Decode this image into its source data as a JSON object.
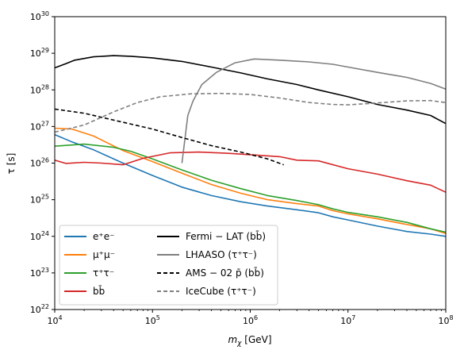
{
  "chart_data": {
    "type": "line",
    "xlabel": "m_χ [GeV]",
    "ylabel": "τ [s]",
    "x_scale": "log",
    "y_scale": "log",
    "xlim": [
      10000,
      100000000
    ],
    "ylim": [
      1e+22,
      1e+30
    ],
    "x_ticks": [
      {
        "value": 10000,
        "base": "10",
        "exp": "4"
      },
      {
        "value": 100000,
        "base": "10",
        "exp": "5"
      },
      {
        "value": 1000000,
        "base": "10",
        "exp": "6"
      },
      {
        "value": 10000000,
        "base": "10",
        "exp": "7"
      },
      {
        "value": 100000000,
        "base": "10",
        "exp": "8"
      }
    ],
    "y_ticks": [
      {
        "value": 1e+22,
        "base": "10",
        "exp": "22"
      },
      {
        "value": 1e+23,
        "base": "10",
        "exp": "23"
      },
      {
        "value": 1e+24,
        "base": "10",
        "exp": "24"
      },
      {
        "value": 1e+25,
        "base": "10",
        "exp": "25"
      },
      {
        "value": 1e+26,
        "base": "10",
        "exp": "26"
      },
      {
        "value": 1e+27,
        "base": "10",
        "exp": "27"
      },
      {
        "value": 1e+28,
        "base": "10",
        "exp": "28"
      },
      {
        "value": 1e+29,
        "base": "10",
        "exp": "29"
      },
      {
        "value": 1e+30,
        "base": "10",
        "exp": "30"
      }
    ],
    "grid": false,
    "legend_placement": "lower-left",
    "series": [
      {
        "name": "e⁺e⁻",
        "color": "#1f77b4",
        "style": "solid",
        "points": [
          [
            10000,
            6e+26
          ],
          [
            15000,
            3.8e+26
          ],
          [
            25000,
            2.3e+26
          ],
          [
            50000,
            1e+26
          ],
          [
            100000,
            4.6e+25
          ],
          [
            200000,
            2.2e+25
          ],
          [
            400000,
            1.3e+25
          ],
          [
            800000,
            8.8e+24
          ],
          [
            1500000,
            6.7e+24
          ],
          [
            3000000,
            5.3e+24
          ],
          [
            5000000,
            4.4e+24
          ],
          [
            7000000,
            3.4e+24
          ],
          [
            10000000,
            2.8e+24
          ],
          [
            20000000,
            1.9e+24
          ],
          [
            40000000,
            1.35e+24
          ],
          [
            70000000,
            1.15e+24
          ],
          [
            100000000,
            1e+24
          ]
        ]
      },
      {
        "name": "μ⁺μ⁻",
        "color": "#ff7f0e",
        "style": "solid",
        "points": [
          [
            10000,
            9e+26
          ],
          [
            15000,
            8.5e+26
          ],
          [
            25000,
            5.5e+26
          ],
          [
            50000,
            2.2e+26
          ],
          [
            100000,
            1.1e+26
          ],
          [
            200000,
            5.3e+25
          ],
          [
            400000,
            2.6e+25
          ],
          [
            800000,
            1.5e+25
          ],
          [
            1500000,
            1e+25
          ],
          [
            3000000,
            7.8e+24
          ],
          [
            5000000,
            6.7e+24
          ],
          [
            7000000,
            5e+24
          ],
          [
            10000000,
            4.1e+24
          ],
          [
            20000000,
            3e+24
          ],
          [
            40000000,
            2.1e+24
          ],
          [
            70000000,
            1.6e+24
          ],
          [
            100000000,
            1.2e+24
          ]
        ]
      },
      {
        "name": "τ⁺τ⁻",
        "color": "#2ca02c",
        "style": "solid",
        "points": [
          [
            10000,
            2.9e+26
          ],
          [
            20000,
            3.3e+26
          ],
          [
            40000,
            2.7e+26
          ],
          [
            60000,
            2.1e+26
          ],
          [
            100000,
            1.3e+26
          ],
          [
            200000,
            6.5e+25
          ],
          [
            400000,
            3.4e+25
          ],
          [
            800000,
            2e+25
          ],
          [
            1500000,
            1.3e+25
          ],
          [
            3000000,
            9.5e+24
          ],
          [
            5000000,
            7.3e+24
          ],
          [
            7000000,
            5.6e+24
          ],
          [
            10000000,
            4.5e+24
          ],
          [
            20000000,
            3.4e+24
          ],
          [
            40000000,
            2.4e+24
          ],
          [
            70000000,
            1.6e+24
          ],
          [
            100000000,
            1.3e+24
          ]
        ]
      },
      {
        "name": "bb̄",
        "color": "#d62728",
        "style": "solid",
        "points": [
          [
            10000,
            1.2e+26
          ],
          [
            13000,
            9.8e+25
          ],
          [
            20000,
            1.05e+26
          ],
          [
            30000,
            1e+26
          ],
          [
            50000,
            9e+25
          ],
          [
            80000,
            1.35e+26
          ],
          [
            150000,
            1.9e+26
          ],
          [
            300000,
            2e+26
          ],
          [
            600000,
            1.85e+26
          ],
          [
            1000000,
            1.7e+26
          ],
          [
            2000000,
            1.5e+26
          ],
          [
            3000000,
            1.2e+26
          ],
          [
            5000000,
            1.15e+26
          ],
          [
            10000000,
            7e+25
          ],
          [
            20000000,
            5e+25
          ],
          [
            40000000,
            3.3e+25
          ],
          [
            70000000,
            2.5e+25
          ],
          [
            100000000,
            1.6e+25
          ]
        ]
      },
      {
        "name": "Fermi − LAT (bb̄)",
        "color": "#000000",
        "style": "solid",
        "points": [
          [
            10000,
            4e+28
          ],
          [
            13000,
            5.2e+28
          ],
          [
            16000,
            6.5e+28
          ],
          [
            25000,
            8e+28
          ],
          [
            40000,
            8.6e+28
          ],
          [
            60000,
            8.3e+28
          ],
          [
            100000,
            7.5e+28
          ],
          [
            200000,
            6e+28
          ],
          [
            400000,
            4.2e+28
          ],
          [
            800000,
            2.9e+28
          ],
          [
            1500000,
            2e+28
          ],
          [
            3000000,
            1.4e+28
          ],
          [
            5000000,
            1e+28
          ],
          [
            10000000,
            6.5e+27
          ],
          [
            20000000,
            4e+27
          ],
          [
            40000000,
            2.8e+27
          ],
          [
            70000000,
            2e+27
          ],
          [
            100000000,
            1.2e+27
          ]
        ]
      },
      {
        "name": "LHAASO (τ⁺τ⁻)",
        "color": "#7f7f7f",
        "style": "solid",
        "points": [
          [
            200000,
            1e+26
          ],
          [
            230000,
            2e+27
          ],
          [
            260000,
            5e+27
          ],
          [
            320000,
            1.4e+28
          ],
          [
            450000,
            3e+28
          ],
          [
            700000,
            5.5e+28
          ],
          [
            1100000,
            7e+28
          ],
          [
            2000000,
            6.5e+28
          ],
          [
            4000000,
            5.8e+28
          ],
          [
            7000000,
            5e+28
          ],
          [
            10000000,
            4.2e+28
          ],
          [
            20000000,
            3e+28
          ],
          [
            40000000,
            2.2e+28
          ],
          [
            70000000,
            1.5e+28
          ],
          [
            100000000,
            1.05e+28
          ]
        ]
      },
      {
        "name": "AMS − 02 p̄ (bb̄)",
        "color": "#000000",
        "style": "dashed",
        "points": [
          [
            10000,
            3e+27
          ],
          [
            20000,
            2.3e+27
          ],
          [
            40000,
            1.5e+27
          ],
          [
            100000,
            8.5e+26
          ],
          [
            200000,
            5e+26
          ],
          [
            400000,
            3e+26
          ],
          [
            800000,
            2e+26
          ],
          [
            1500000,
            1.3e+26
          ],
          [
            2200000,
            9e+25
          ]
        ]
      },
      {
        "name": "IceCube (τ⁺τ⁻)",
        "color": "#7f7f7f",
        "style": "dashed",
        "points": [
          [
            10000,
            7e+26
          ],
          [
            20000,
            1.1e+27
          ],
          [
            40000,
            2.5e+27
          ],
          [
            70000,
            4.5e+27
          ],
          [
            120000,
            6.5e+27
          ],
          [
            250000,
            7.8e+27
          ],
          [
            500000,
            8e+27
          ],
          [
            1000000,
            7.5e+27
          ],
          [
            2000000,
            6e+27
          ],
          [
            4000000,
            4.5e+27
          ],
          [
            7000000,
            4e+27
          ],
          [
            10000000,
            3.9e+27
          ],
          [
            20000000,
            4.4e+27
          ],
          [
            40000000,
            5e+27
          ],
          [
            70000000,
            5.1e+27
          ],
          [
            100000000,
            4.5e+27
          ]
        ]
      }
    ]
  }
}
